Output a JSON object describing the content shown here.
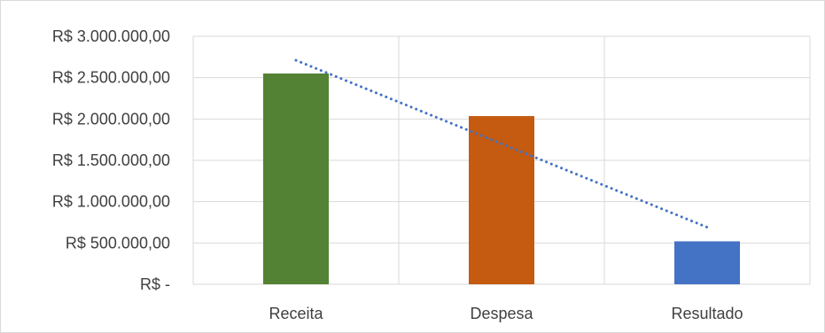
{
  "chart_data": {
    "type": "bar",
    "title": "",
    "xlabel": "",
    "ylabel": "",
    "categories": [
      "Receita",
      "Despesa",
      "Resultado"
    ],
    "values": [
      2550000,
      2035000,
      520000
    ],
    "colors": [
      "#548235",
      "#C55A11",
      "#4472C4"
    ],
    "ylim": [
      0,
      3000000
    ],
    "y_tick_labels": [
      "R$ -",
      "R$ 500.000,00",
      "R$ 1.000.000,00",
      "R$ 1.500.000,00",
      "R$ 2.000.000,00",
      "R$ 2.500.000,00",
      "R$ 3.000.000,00"
    ],
    "y_tick_values": [
      0,
      500000,
      1000000,
      1500000,
      2000000,
      2500000,
      3000000
    ],
    "gridlines": true,
    "vertical_gridlines": true,
    "trendline": {
      "type": "linear",
      "style": "dotted",
      "color": "#4472C4",
      "start_value": 2710000,
      "end_value": 690000
    },
    "legend": "none"
  }
}
